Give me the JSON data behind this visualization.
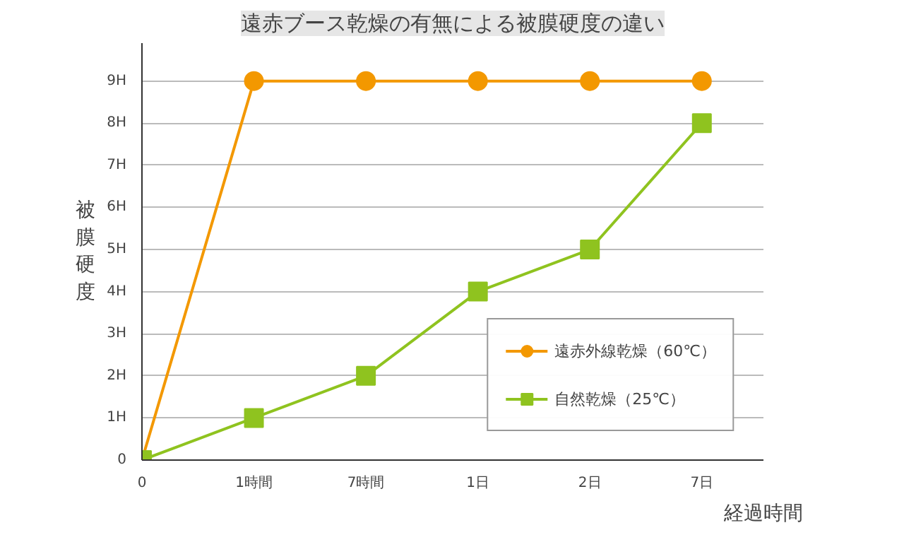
{
  "chart_data": {
    "type": "line",
    "title": "遠赤ブース乾燥の有無による被膜硬度の違い",
    "xlabel": "経過時間",
    "ylabel": "被膜硬度",
    "categories": [
      "0",
      "1時間",
      "7時間",
      "1日",
      "2日",
      "7日"
    ],
    "series": [
      {
        "name": "遠赤外線乾燥（60℃）",
        "color": "#f39800",
        "marker": "circle",
        "values": [
          0,
          9,
          9,
          9,
          9,
          9
        ]
      },
      {
        "name": "自然乾燥（25℃）",
        "color": "#8fc31f",
        "marker": "square",
        "values": [
          0,
          1,
          2,
          4,
          5,
          8
        ]
      }
    ],
    "ylim": [
      0,
      9.9
    ],
    "yticks": [
      0,
      {
        "value": 1,
        "label": "1H"
      },
      {
        "value": 2,
        "label": "2H"
      },
      {
        "value": 3,
        "label": "3H"
      },
      {
        "value": 4,
        "label": "4H"
      },
      {
        "value": 5,
        "label": "5H"
      },
      {
        "value": 6,
        "label": "6H"
      },
      {
        "value": 7,
        "label": "7H"
      },
      {
        "value": 8,
        "label": "8H"
      },
      {
        "value": 9,
        "label": "9H"
      }
    ],
    "grid": "y",
    "legend": "bottom right",
    "line_style": "solid"
  }
}
